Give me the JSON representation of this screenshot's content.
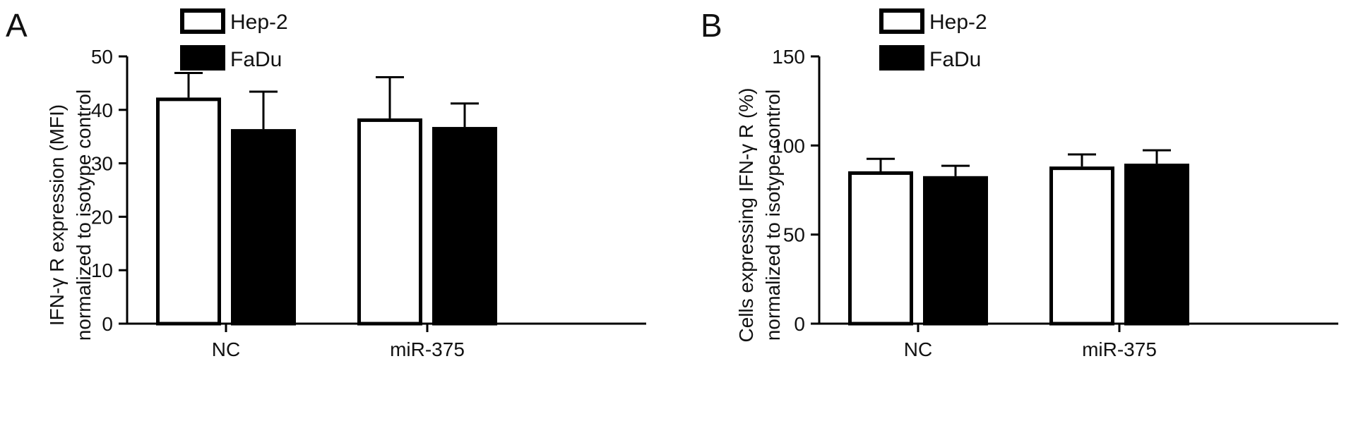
{
  "chart_data": [
    {
      "panel": "A",
      "type": "bar",
      "categories": [
        "NC",
        "miR-375"
      ],
      "series": [
        {
          "name": "Hep-2",
          "values": [
            42.3,
            38.4
          ],
          "errors": [
            4.6,
            7.7
          ],
          "fill": "#ffffff"
        },
        {
          "name": "FaDu",
          "values": [
            36.4,
            36.8
          ],
          "errors": [
            7.0,
            4.4
          ],
          "fill": "#000000"
        }
      ],
      "ylabel_lines": [
        "IFN-γ R expression (MFI)",
        "normalized to isotype control"
      ],
      "xlabel": "",
      "ylim": [
        0,
        50
      ],
      "yticks": [
        0,
        10,
        20,
        30,
        40,
        50
      ],
      "legend": "top-left",
      "grid": false
    },
    {
      "panel": "B",
      "type": "bar",
      "categories": [
        "NC",
        "miR-375"
      ],
      "series": [
        {
          "name": "Hep-2",
          "values": [
            85.5,
            88.2
          ],
          "errors": [
            7.0,
            6.8
          ],
          "fill": "#ffffff"
        },
        {
          "name": "FaDu",
          "values": [
            82.8,
            89.8
          ],
          "errors": [
            5.8,
            7.5
          ],
          "fill": "#000000"
        }
      ],
      "ylabel_lines": [
        "Cells expressing IFN-γ R (%)",
        "normalized to isotype control"
      ],
      "xlabel": "",
      "ylim": [
        0,
        150
      ],
      "yticks": [
        0,
        50,
        100,
        150
      ],
      "legend": "top-left",
      "grid": false
    }
  ]
}
